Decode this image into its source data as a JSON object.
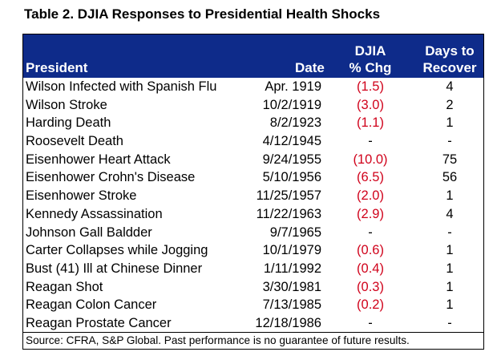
{
  "title": "Table 2. DJIA Responses to Presidential Health Shocks",
  "header": {
    "president": "President",
    "date": "Date",
    "djia_line1": "DJIA",
    "djia_line2": "% Chg",
    "days_line1": "Days to",
    "days_line2": "Recover"
  },
  "accent_colors": {
    "header_bg": "#0e2b8a",
    "negative_text": "#d0021b"
  },
  "rows": [
    {
      "president": "Wilson Infected with Spanish Flu",
      "date": "Apr. 1919",
      "chg": "(1.5)",
      "days": "4"
    },
    {
      "president": "Wilson Stroke",
      "date": "10/2/1919",
      "chg": "(3.0)",
      "days": "2"
    },
    {
      "president": "Harding Death",
      "date": "8/2/1923",
      "chg": "(1.1)",
      "days": "1"
    },
    {
      "president": "Roosevelt Death",
      "date": "4/12/1945",
      "chg": "-",
      "days": "-"
    },
    {
      "president": "Eisenhower Heart Attack",
      "date": "9/24/1955",
      "chg": "(10.0)",
      "days": "75"
    },
    {
      "president": "Eisenhower Crohn's Disease",
      "date": "5/10/1956",
      "chg": "(6.5)",
      "days": "56"
    },
    {
      "president": "Eisenhower Stroke",
      "date": "11/25/1957",
      "chg": "(2.0)",
      "days": "1"
    },
    {
      "president": "Kennedy Assassination",
      "date": "11/22/1963",
      "chg": "(2.9)",
      "days": "4"
    },
    {
      "president": "Johnson Gall Baldder",
      "date": "9/7/1965",
      "chg": "-",
      "days": "-"
    },
    {
      "president": "Carter Collapses while Jogging",
      "date": "10/1/1979",
      "chg": "(0.6)",
      "days": "1"
    },
    {
      "president": "Bust (41) Ill at Chinese Dinner",
      "date": "1/11/1992",
      "chg": "(0.4)",
      "days": "1"
    },
    {
      "president": "Reagan Shot",
      "date": "3/30/1981",
      "chg": "(0.3)",
      "days": "1"
    },
    {
      "president": "Reagan Colon Cancer",
      "date": "7/13/1985",
      "chg": "(0.2)",
      "days": "1"
    },
    {
      "president": "Reagan Prostate Cancer",
      "date": "12/18/1986",
      "chg": "-",
      "days": "-"
    }
  ],
  "source": "Source: CFRA, S&P Global. Past performance is no guarantee of future results."
}
